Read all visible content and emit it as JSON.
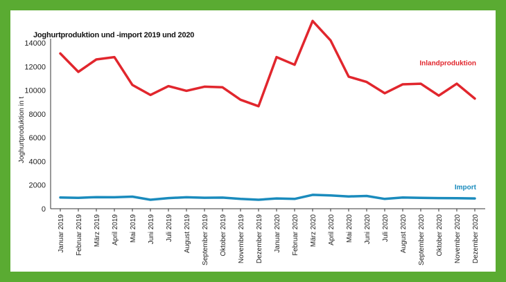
{
  "chart_data": {
    "type": "line",
    "title": "Joghurtproduktion und -import 2019 und 2020",
    "xlabel": "",
    "ylabel": "Joghurtproduktion in t",
    "ylim": [
      0,
      14000
    ],
    "yticks": [
      "0",
      "2000",
      "4000",
      "6000",
      "8000",
      "10000",
      "12000",
      "14000"
    ],
    "grid": false,
    "legend": "inline",
    "categories": [
      "Januar 2019",
      "Februar 2019",
      "März 2019",
      "April 2019",
      "Mai 2019",
      "Juni 2019",
      "Juli 2019",
      "August 2019",
      "September 2019",
      "Oktober 2019",
      "November 2019",
      "Dezember 2019",
      "Januar 2020",
      "Februar 2020",
      "März 2020",
      "April 2020",
      "Mai 2020",
      "Juni 2020",
      "Juli 2020",
      "August 2020",
      "September 2020",
      "Oktober 2020",
      "November 2020",
      "Dezember 2020"
    ],
    "series": [
      {
        "name": "Inlandproduktion",
        "color": "#e1262d",
        "values": [
          13100,
          11550,
          12600,
          12800,
          10450,
          9600,
          10350,
          9950,
          10300,
          10250,
          9200,
          8650,
          12800,
          12150,
          15850,
          14200,
          11150,
          10700,
          9750,
          10500,
          10550,
          9550,
          10550,
          9300
        ]
      },
      {
        "name": "Import",
        "color": "#1a8bbd",
        "values": [
          950,
          920,
          980,
          970,
          1020,
          760,
          900,
          970,
          930,
          940,
          830,
          760,
          870,
          830,
          1170,
          1120,
          1040,
          1080,
          830,
          950,
          920,
          900,
          890,
          870
        ]
      }
    ]
  }
}
